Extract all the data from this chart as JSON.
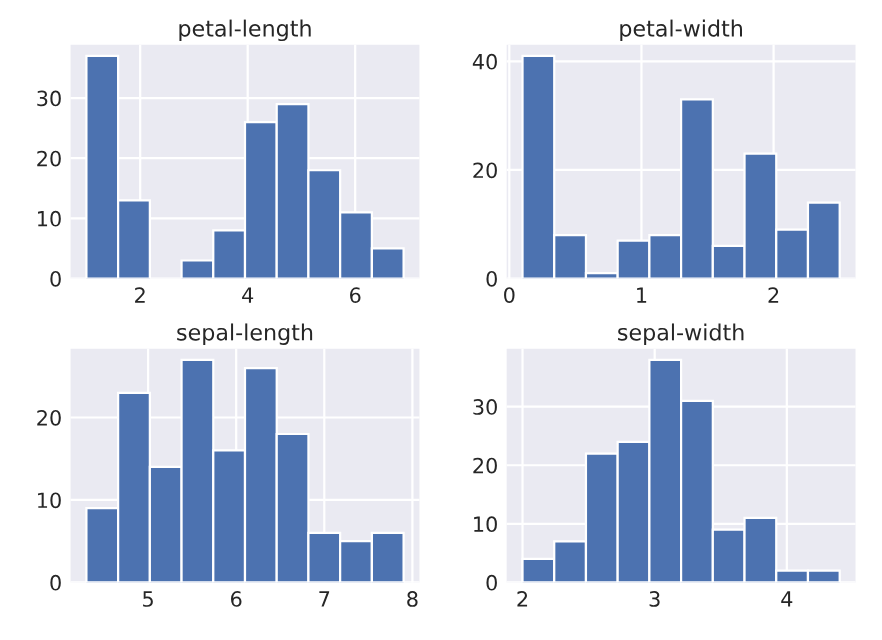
{
  "chart_data": [
    {
      "type": "histogram",
      "title": "petal-length",
      "bins": [
        1.0,
        1.59,
        2.18,
        2.77,
        3.36,
        3.95,
        4.54,
        5.13,
        5.72,
        6.31,
        6.9
      ],
      "values": [
        37,
        13,
        0,
        3,
        8,
        26,
        29,
        18,
        11,
        5
      ],
      "color": "#4c72b0",
      "xlim": [
        0.705,
        7.195
      ],
      "xticks": [
        2,
        4,
        6
      ],
      "ylim": [
        0,
        38.85
      ],
      "yticks": [
        0,
        10,
        20,
        30
      ],
      "grid": true
    },
    {
      "type": "histogram",
      "title": "petal-width",
      "bins": [
        0.1,
        0.34,
        0.58,
        0.82,
        1.06,
        1.3,
        1.54,
        1.78,
        2.02,
        2.26,
        2.5
      ],
      "values": [
        41,
        8,
        1,
        7,
        8,
        33,
        6,
        23,
        9,
        14
      ],
      "color": "#4c72b0",
      "xlim": [
        -0.02,
        2.62
      ],
      "xticks": [
        0,
        1,
        2
      ],
      "ylim": [
        0,
        43.05
      ],
      "yticks": [
        0,
        20,
        40
      ],
      "grid": true
    },
    {
      "type": "histogram",
      "title": "sepal-length",
      "bins": [
        4.3,
        4.66,
        5.02,
        5.38,
        5.74,
        6.1,
        6.46,
        6.82,
        7.18,
        7.54,
        7.9
      ],
      "values": [
        9,
        23,
        14,
        27,
        16,
        26,
        18,
        6,
        5,
        6
      ],
      "color": "#4c72b0",
      "xlim": [
        4.12,
        8.08
      ],
      "xticks": [
        5,
        6,
        7,
        8
      ],
      "ylim": [
        0,
        28.35
      ],
      "yticks": [
        0,
        10,
        20
      ],
      "grid": true
    },
    {
      "type": "histogram",
      "title": "sepal-width",
      "bins": [
        2.0,
        2.24,
        2.48,
        2.72,
        2.96,
        3.2,
        3.44,
        3.68,
        3.92,
        4.16,
        4.4
      ],
      "values": [
        4,
        7,
        22,
        24,
        38,
        31,
        9,
        11,
        2,
        2
      ],
      "color": "#4c72b0",
      "xlim": [
        1.88,
        4.52
      ],
      "xticks": [
        2,
        3,
        4
      ],
      "ylim": [
        0,
        39.9
      ],
      "yticks": [
        0,
        10,
        20,
        30
      ],
      "grid": true
    }
  ]
}
